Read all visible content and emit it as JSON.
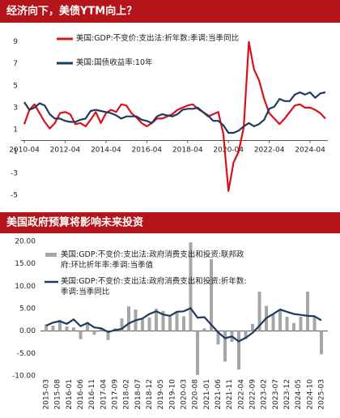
{
  "chart_data": [
    {
      "type": "line",
      "title": "经济向下，美债YTM向上？",
      "x": [
        "2010-04",
        "2010-07",
        "2010-10",
        "2011-01",
        "2011-04",
        "2011-07",
        "2011-10",
        "2012-01",
        "2012-04",
        "2012-07",
        "2012-10",
        "2013-01",
        "2013-04",
        "2013-07",
        "2013-10",
        "2014-01",
        "2014-04",
        "2014-07",
        "2014-10",
        "2015-01",
        "2015-04",
        "2015-07",
        "2015-10",
        "2016-01",
        "2016-04",
        "2016-07",
        "2016-10",
        "2017-01",
        "2017-04",
        "2017-07",
        "2017-10",
        "2018-01",
        "2018-04",
        "2018-07",
        "2018-10",
        "2019-01",
        "2019-04",
        "2019-07",
        "2019-10",
        "2020-01",
        "2020-04",
        "2020-07",
        "2020-10",
        "2021-01",
        "2021-04",
        "2021-07",
        "2021-10",
        "2022-01",
        "2022-04",
        "2022-07",
        "2022-10",
        "2023-01",
        "2023-04",
        "2023-07",
        "2023-10",
        "2024-01",
        "2024-04",
        "2024-07",
        "2024-10",
        "2025-01"
      ],
      "xticks": [
        "2010-04",
        "2012-04",
        "2014-04",
        "2016-04",
        "2018-04",
        "2020-04",
        "2022-04",
        "2024-04"
      ],
      "ylim": [
        -5.5,
        10.6
      ],
      "yticks": [
        -5,
        -3,
        -1,
        1,
        3,
        5,
        7,
        9
      ],
      "series": [
        {
          "name": "美国:GDP:不变价:支出法:折年数:季调:当季同比",
          "color": "#d8111b",
          "values": [
            1.5,
            2.8,
            3.3,
            2.5,
            1.7,
            1.1,
            1.6,
            2.5,
            2.6,
            2.4,
            1.5,
            1.6,
            1.3,
            1.9,
            2.6,
            1.6,
            2.5,
            2.8,
            2.6,
            3.3,
            3.2,
            2.5,
            2.1,
            1.6,
            1.3,
            1.6,
            2.0,
            2.0,
            2.2,
            2.4,
            2.8,
            3.0,
            3.2,
            3.3,
            2.9,
            2.6,
            2.2,
            2.4,
            2.6,
            0.6,
            -4.6,
            -2.0,
            -1.0,
            1.2,
            9.0,
            6.5,
            5.5,
            3.8,
            2.5,
            2.0,
            1.5,
            2.0,
            2.6,
            3.2,
            3.3,
            3.0,
            3.0,
            2.8,
            2.5,
            2.0
          ]
        },
        {
          "name": "美国:国债收益率:10年",
          "color": "#1f3a5f",
          "values": [
            3.5,
            2.8,
            3.0,
            3.4,
            3.2,
            2.4,
            2.0,
            2.0,
            1.8,
            1.7,
            1.7,
            1.9,
            2.0,
            2.7,
            2.8,
            2.7,
            2.6,
            2.5,
            2.3,
            2.0,
            2.2,
            2.2,
            2.2,
            1.9,
            1.8,
            1.6,
            2.2,
            2.4,
            2.3,
            2.2,
            2.4,
            2.8,
            2.9,
            2.9,
            3.0,
            2.6,
            2.3,
            1.8,
            1.8,
            1.4,
            0.7,
            0.7,
            0.9,
            1.3,
            1.6,
            1.3,
            1.5,
            1.9,
            2.9,
            3.1,
            3.8,
            3.6,
            3.6,
            4.2,
            4.4,
            4.2,
            4.4,
            3.9,
            4.3,
            4.4
          ]
        }
      ]
    },
    {
      "type": "combo",
      "title": "美国政府预算将影响未来投资",
      "x": [
        "2015-03",
        "2015-06",
        "2015-09",
        "2015-12",
        "2016-03",
        "2016-06",
        "2016-09",
        "2016-12",
        "2017-03",
        "2017-06",
        "2017-09",
        "2017-12",
        "2018-03",
        "2018-06",
        "2018-09",
        "2018-12",
        "2019-03",
        "2019-06",
        "2019-09",
        "2019-12",
        "2020-03",
        "2020-06",
        "2020-09",
        "2020-12",
        "2021-03",
        "2021-06",
        "2021-09",
        "2021-12",
        "2022-03",
        "2022-06",
        "2022-09",
        "2022-12",
        "2023-03",
        "2023-06",
        "2023-09",
        "2023-12",
        "2024-03",
        "2024-06",
        "2024-09",
        "2024-12",
        "2025-03"
      ],
      "xticks": [
        "2015-03",
        "2015-08",
        "2016-01",
        "2016-06",
        "2016-11",
        "2017-04",
        "2017-09",
        "2018-02",
        "2018-07",
        "2018-12",
        "2019-05",
        "2019-10",
        "2020-03",
        "2020-08",
        "2021-01",
        "2021-06",
        "2021-11",
        "2022-04",
        "2022-09",
        "2023-02",
        "2023-07",
        "2023-12",
        "2024-05",
        "2024-10",
        "2025-03"
      ],
      "ylim": [
        -10,
        20
      ],
      "yticks": [
        {
          "value": 20,
          "label": "20.00"
        },
        {
          "value": 15,
          "label": "15.00"
        },
        {
          "value": 10,
          "label": "10.00"
        },
        {
          "value": 5,
          "label": "5.00"
        },
        {
          "value": 0,
          "label": "0.00"
        },
        {
          "value": -5,
          "label": "-5.00"
        },
        {
          "value": -10,
          "label": "-10.00"
        }
      ],
      "series": [
        {
          "name": "美国:GDP:不变价:支出法:政府消费支出和投资:联邦政府:环比折年率:季调:当季值",
          "type": "bar",
          "color": "#a6a6a6",
          "values": [
            1.5,
            1.2,
            2.5,
            1.0,
            0.8,
            -1.8,
            2.0,
            -0.8,
            0.5,
            -2.0,
            0.6,
            2.8,
            5.5,
            4.8,
            2.6,
            3.0,
            5.0,
            4.5,
            3.2,
            4.4,
            3.3,
            19.8,
            -9.8,
            0.6,
            16.0,
            -3.0,
            -6.8,
            -2.4,
            -8.6,
            -1.8,
            1.6,
            8.8,
            5.6,
            3.8,
            4.6,
            3.2,
            1.8,
            3.2,
            8.8,
            3.1,
            -5.2
          ]
        },
        {
          "name": "美国:GDP:不变价:支出法:政府消费支出和投资:折年数:季调:当季同比",
          "type": "line",
          "color": "#1f3a5f",
          "values": [
            1.2,
            1.9,
            2.2,
            1.6,
            2.6,
            1.1,
            1.8,
            0.8,
            0.6,
            -0.2,
            0.2,
            0.5,
            1.7,
            2.4,
            2.8,
            3.8,
            4.4,
            3.7,
            3.4,
            4.3,
            4.4,
            5.1,
            3.0,
            3.1,
            1.4,
            -0.3,
            -1.6,
            -1.2,
            -2.3,
            -1.5,
            -0.4,
            1.2,
            2.9,
            3.8,
            4.8,
            4.3,
            3.8,
            3.6,
            3.4,
            3.3,
            2.4
          ]
        }
      ]
    }
  ]
}
